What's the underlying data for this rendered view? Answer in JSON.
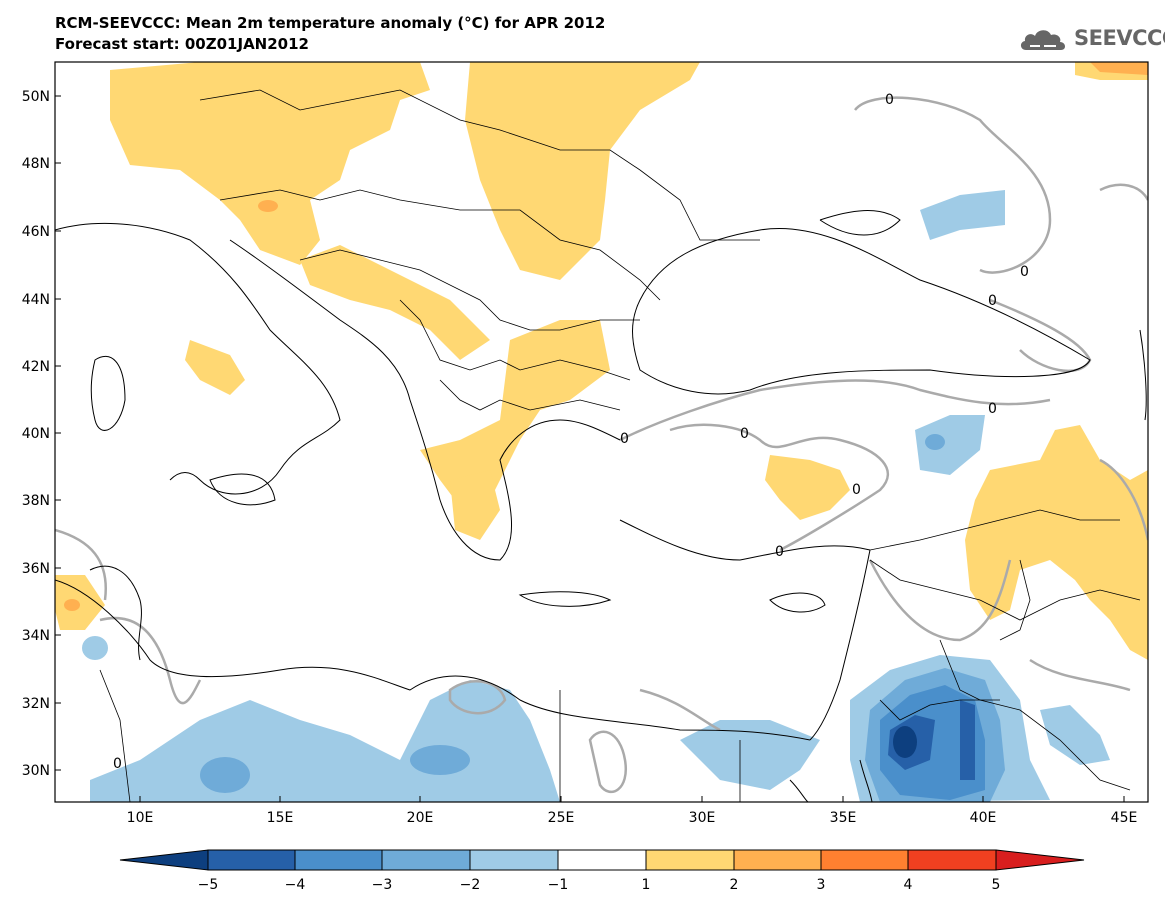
{
  "header": {
    "title_line1": "RCM-SEEVCCC: Mean 2m temperature anomaly (°C) for APR 2012",
    "title_line2": "Forecast start: 00Z01JAN2012"
  },
  "logo": {
    "text": "SEEVCCC",
    "icon": "cloud-icon",
    "color": "#666666"
  },
  "map": {
    "lat_labels": [
      "50N",
      "48N",
      "46N",
      "44N",
      "42N",
      "40N",
      "38N",
      "36N",
      "34N",
      "32N",
      "30N"
    ],
    "lon_labels": [
      "10E",
      "15E",
      "20E",
      "25E",
      "30E",
      "35E",
      "40E",
      "45E"
    ],
    "contour_label": "0",
    "colors": {
      "warm1": "#ffd873",
      "warm2": "#ffb050",
      "warm3": "#ff8030",
      "warm4": "#f04020",
      "cool1": "#9fcbe6",
      "cool2": "#6fabd8",
      "cool3": "#4a8fcb",
      "cool4": "#2660a8",
      "cool5": "#0d3f7f",
      "contour": "#aaaaaa"
    }
  },
  "colorbar": {
    "labels": [
      "−5",
      "−4",
      "−3",
      "−2",
      "−1",
      "1",
      "2",
      "3",
      "4",
      "5"
    ],
    "colors": [
      "#0d3f7f",
      "#2660a8",
      "#4a8fcb",
      "#6fabd8",
      "#9fcbe6",
      "#ffffff",
      "#ffd873",
      "#ffb050",
      "#ff8030",
      "#f04020",
      "#d81e1e"
    ]
  }
}
